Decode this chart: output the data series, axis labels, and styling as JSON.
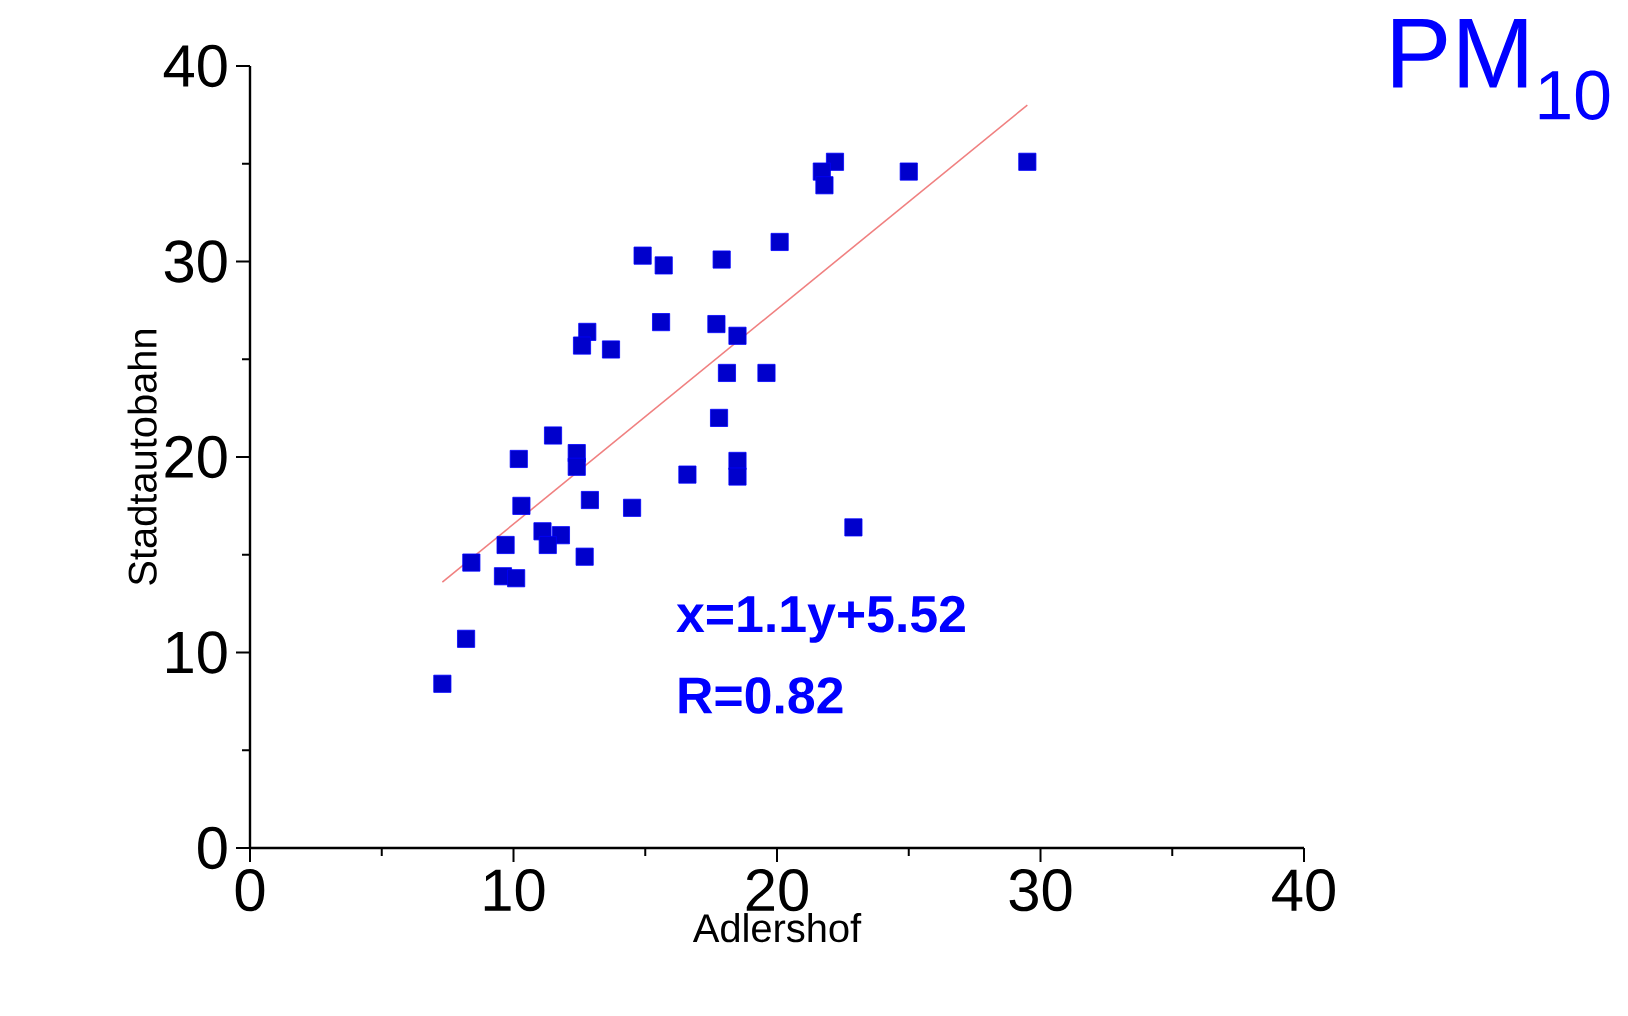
{
  "chart_data": {
    "type": "scatter",
    "title": "PM$_{10}$",
    "xlabel": "Adlershof",
    "ylabel": "Stadtautobahn",
    "xlim": [
      0,
      40
    ],
    "ylim": [
      0,
      40
    ],
    "xticks": [
      0,
      {
        "value": 5,
        "label": null
      },
      10,
      {
        "value": 15,
        "label": null
      },
      20,
      {
        "value": 25,
        "label": null
      },
      30,
      {
        "value": 35,
        "label": null
      },
      40
    ],
    "yticks": [
      0,
      {
        "value": 5,
        "label": null
      },
      10,
      {
        "value": 15,
        "label": null
      },
      20,
      {
        "value": 25,
        "label": null
      },
      30,
      {
        "value": 35,
        "label": null
      },
      40
    ],
    "annotations": [
      "x=1.1y+5.52",
      "R=0.82"
    ],
    "series": [
      {
        "color": "#0000ff",
        "marker": "square",
        "x": [
          29.5,
          25.0,
          22.2,
          21.7,
          21.8,
          20.1,
          17.9,
          14.9,
          15.7,
          15.6,
          17.7,
          18.5,
          12.8,
          12.6,
          13.7,
          18.1,
          19.6,
          17.8,
          11.5,
          10.2,
          12.4,
          12.4,
          16.6,
          18.5,
          18.5,
          12.9,
          10.3,
          14.5,
          22.9,
          11.1,
          11.8,
          11.3,
          9.7,
          12.7,
          8.4,
          9.6,
          10.1,
          8.2,
          7.3
        ],
        "values": [
          35.1,
          34.6,
          35.1,
          34.6,
          33.9,
          31.0,
          30.1,
          30.3,
          29.8,
          26.9,
          26.8,
          26.2,
          26.4,
          25.7,
          25.5,
          24.3,
          24.3,
          22.0,
          21.1,
          19.9,
          20.2,
          19.5,
          19.1,
          19.8,
          19.0,
          17.8,
          17.5,
          17.4,
          16.4,
          16.2,
          16.0,
          15.5,
          15.5,
          14.9,
          14.6,
          13.9,
          13.8,
          10.7,
          8.4
        ]
      },
      {
        "type": "line",
        "color": "#f08080",
        "marker": "none",
        "line_style": "solid",
        "x": [
          7.3,
          29.5
        ],
        "values": [
          13.6,
          38.0
        ]
      }
    ]
  }
}
